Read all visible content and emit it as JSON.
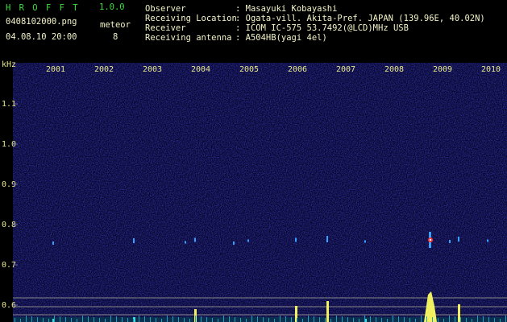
{
  "header": {
    "app_title": "H R O F F T",
    "version": "1.0.0",
    "filename": "0408102000.png",
    "datetime": "04.08.10 20:00",
    "meteor_label": "meteor",
    "meteor_count": "8",
    "info": [
      {
        "label": "Observer",
        "value": ": Masayuki Kobayashi"
      },
      {
        "label": "Receiving Location",
        "value": ": Ogata-vill. Akita-Pref. JAPAN (139.96E, 40.02N)"
      },
      {
        "label": "Receiver",
        "value": ": ICOM IC-575 53.7492(@LCD)MHz USB"
      },
      {
        "label": "Receiving antenna",
        "value": ": A504HB(yagi 4el)"
      }
    ]
  },
  "spectrogram": {
    "unit": "kHz",
    "time_labels": [
      "2001",
      "2002",
      "2003",
      "2004",
      "2005",
      "2006",
      "2007",
      "2008",
      "2009",
      "2010"
    ],
    "freq_labels": [
      "1.1",
      "1.0",
      "0.9",
      "0.8",
      "0.7",
      "0.6"
    ]
  }
}
